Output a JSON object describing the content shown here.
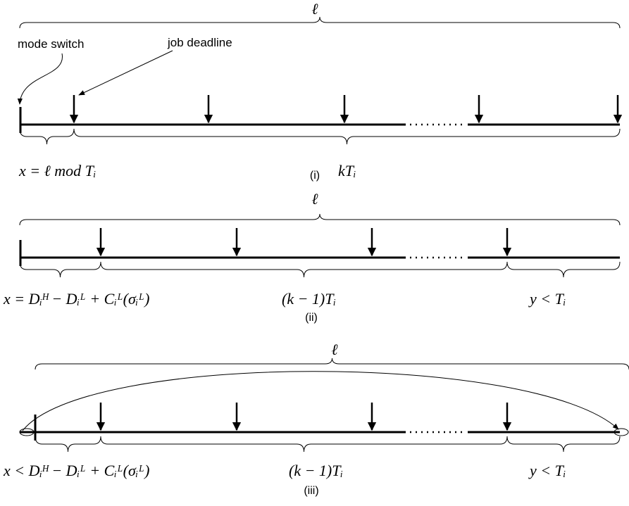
{
  "annotations": {
    "mode_switch": "mode switch",
    "job_deadline": "job deadline"
  },
  "panels": [
    {
      "caption": "(i)",
      "span_label": "ℓ",
      "segment_labels": [
        "x = ℓ mod Tᵢ",
        "kTᵢ"
      ]
    },
    {
      "caption": "(ii)",
      "span_label": "ℓ",
      "segment_labels": [
        "x = Dᵢᴴ − Dᵢᴸ + Cᵢᴸ(σᵢᴸ)",
        "(k − 1)Tᵢ",
        "y < Tᵢ"
      ]
    },
    {
      "caption": "(iii)",
      "span_label": "ℓ",
      "segment_labels": [
        "x < Dᵢᴴ − Dᵢᴸ + Cᵢᴸ(σᵢᴸ)",
        "(k − 1)Tᵢ",
        "y < Tᵢ"
      ]
    }
  ]
}
